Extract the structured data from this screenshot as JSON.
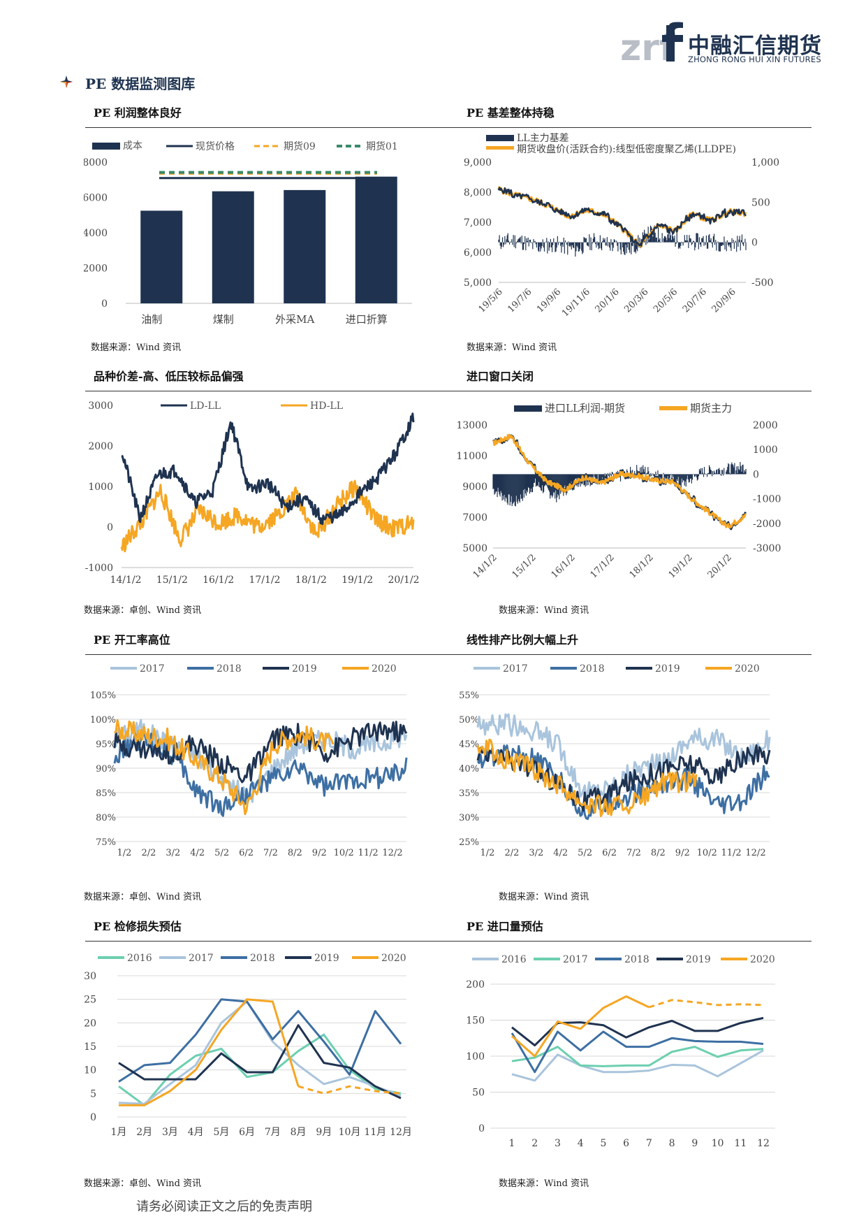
{
  "header": {
    "logo_mark": "zrf",
    "logo_cn": "中融汇信期货",
    "logo_en": "ZHONG RONG HUI XIN FUTURES",
    "brand_color": "#1f3350"
  },
  "section_title": "PE 数据监测图库",
  "panels": [
    {
      "title": "PE 利润整体良好",
      "source": "数据来源：Wind 资讯"
    },
    {
      "title": "PE 基差整体持稳",
      "source": "数据来源：Wind 资讯"
    },
    {
      "title": "品种价差-高、低压较标品偏强",
      "source": "数据来源：卓创、Wind 资讯"
    },
    {
      "title": "进口窗口关闭",
      "source": "数据来源：Wind 资讯"
    },
    {
      "title": "PE 开工率高位",
      "source": "数据来源：卓创、Wind 资讯"
    },
    {
      "title": "线性排产比例大幅上升",
      "source": "数据来源：Wind 资讯"
    },
    {
      "title": "PE 检修损失预估",
      "source": "数据来源：卓创、Wind 资讯"
    },
    {
      "title": "PE 进口量预估",
      "source": "数据来源：Wind 资讯"
    }
  ],
  "footer": "请务必阅读正文之后的免责声明",
  "colors": {
    "navy": "#1f3350",
    "orange": "#f5a623",
    "green": "#3a8a6a",
    "lightblue": "#a9c4dc",
    "midblue": "#3d6fa3",
    "teal": "#6ccfb0"
  },
  "chart_data": [
    {
      "type": "bar",
      "categories": [
        "油制",
        "煤制",
        "外采MA",
        "进口折算"
      ],
      "series": [
        {
          "name": "成本",
          "values": [
            5250,
            6350,
            6420,
            7180
          ]
        },
        {
          "name": "现货价格",
          "values": [
            7100,
            7100,
            7100,
            7100
          ]
        },
        {
          "name": "期货09",
          "values": [
            7350,
            7350,
            7350,
            7350
          ]
        },
        {
          "name": "期货01",
          "values": [
            7420,
            7420,
            7420,
            7420
          ]
        }
      ],
      "y_ticks": [
        "8000",
        "6000",
        "4000",
        "2000",
        "0"
      ],
      "ylim": [
        0,
        8000
      ]
    },
    {
      "type": "line",
      "series": [
        {
          "name": "LL主力基差"
        },
        {
          "name": "期货收盘价(活跃合约):线型低密度聚乙烯(LLDPE)"
        }
      ],
      "x_ticks": [
        "19/5/6",
        "19/7/6",
        "19/9/6",
        "19/11/6",
        "20/1/6",
        "20/3/6",
        "20/5/6",
        "20/7/6",
        "20/9/6"
      ],
      "y_left_ticks": [
        "9,000",
        "8,000",
        "7,000",
        "6,000",
        "5,000"
      ],
      "y_right_ticks": [
        "1,000",
        "500",
        "0",
        "-500"
      ],
      "ylim_left": [
        5000,
        9000
      ],
      "ylim_right": [
        -500,
        1000
      ]
    },
    {
      "type": "line",
      "series": [
        {
          "name": "LD-LL"
        },
        {
          "name": "HD-LL"
        }
      ],
      "x_ticks": [
        "14/1/2",
        "15/1/2",
        "16/1/2",
        "17/1/2",
        "18/1/2",
        "19/1/2",
        "20/1/2"
      ],
      "y_ticks": [
        "3000",
        "2000",
        "1000",
        "0",
        "-1000"
      ],
      "ylim": [
        -1000,
        3000
      ]
    },
    {
      "type": "line",
      "series": [
        {
          "name": "进口LL利润-期货"
        },
        {
          "name": "期货主力"
        }
      ],
      "x_ticks": [
        "14/1/2",
        "15/1/2",
        "16/1/2",
        "17/1/2",
        "18/1/2",
        "19/1/2",
        "20/1/2"
      ],
      "y_left_ticks": [
        "13000",
        "11000",
        "9000",
        "7000",
        "5000"
      ],
      "y_right_ticks": [
        "2000",
        "1000",
        "0",
        "-1000",
        "-2000",
        "-3000"
      ],
      "ylim_left": [
        5000,
        13000
      ],
      "ylim_right": [
        -3000,
        2000
      ]
    },
    {
      "type": "line",
      "series": [
        {
          "name": "2017"
        },
        {
          "name": "2018"
        },
        {
          "name": "2019"
        },
        {
          "name": "2020"
        }
      ],
      "x_ticks": [
        "1/2",
        "2/2",
        "3/2",
        "4/2",
        "5/2",
        "6/2",
        "7/2",
        "8/2",
        "9/2",
        "10/2",
        "11/2",
        "12/2"
      ],
      "y_ticks": [
        "105%",
        "100%",
        "95%",
        "90%",
        "85%",
        "80%",
        "75%"
      ],
      "ylim": [
        75,
        105
      ]
    },
    {
      "type": "line",
      "series": [
        {
          "name": "2017"
        },
        {
          "name": "2018"
        },
        {
          "name": "2019"
        },
        {
          "name": "2020"
        }
      ],
      "x_ticks": [
        "1/2",
        "2/2",
        "3/2",
        "4/2",
        "5/2",
        "6/2",
        "7/2",
        "8/2",
        "9/2",
        "10/2",
        "11/2",
        "12/2"
      ],
      "y_ticks": [
        "55%",
        "50%",
        "45%",
        "40%",
        "35%",
        "30%",
        "25%"
      ],
      "ylim": [
        25,
        55
      ]
    },
    {
      "type": "line",
      "categories": [
        "1月",
        "2月",
        "3月",
        "4月",
        "5月",
        "6月",
        "7月",
        "8月",
        "9月",
        "10月",
        "11月",
        "12月"
      ],
      "series": [
        {
          "name": "2016",
          "values": [
            6.5,
            2.5,
            9,
            13,
            14.5,
            8.5,
            9.5,
            14,
            17.5,
            10,
            6,
            5
          ]
        },
        {
          "name": "2017",
          "values": [
            3,
            2.8,
            7,
            11,
            20,
            24.5,
            16,
            11,
            7,
            8.5,
            6.5,
            4.5
          ]
        },
        {
          "name": "2018",
          "values": [
            7.5,
            11,
            11.5,
            17.5,
            25,
            24.5,
            16.5,
            22.5,
            16,
            9,
            22.5,
            15.5
          ]
        },
        {
          "name": "2019",
          "values": [
            11.5,
            8,
            8,
            8,
            13.5,
            9.5,
            9.5,
            19.5,
            11.5,
            10.5,
            6.5,
            4
          ]
        },
        {
          "name": "2020",
          "values": [
            2.5,
            2.5,
            5.5,
            10,
            18.5,
            25,
            24.5,
            6.5,
            5,
            6.5,
            5.5,
            5
          ]
        }
      ],
      "y_ticks": [
        "30",
        "25",
        "20",
        "15",
        "10",
        "5",
        "0"
      ],
      "ylim": [
        0,
        30
      ]
    },
    {
      "type": "line",
      "categories": [
        "1",
        "2",
        "3",
        "4",
        "5",
        "6",
        "7",
        "8",
        "9",
        "10",
        "11",
        "12"
      ],
      "series": [
        {
          "name": "2016",
          "values": [
            75,
            66,
            102,
            87,
            78,
            78,
            80,
            88,
            87,
            72,
            90,
            108
          ]
        },
        {
          "name": "2017",
          "values": [
            93,
            98,
            113,
            87,
            86,
            87,
            87,
            106,
            113,
            99,
            108,
            110
          ]
        },
        {
          "name": "2018",
          "values": [
            132,
            78,
            134,
            108,
            134,
            113,
            113,
            125,
            121,
            120,
            120,
            117
          ]
        },
        {
          "name": "2019",
          "values": [
            140,
            115,
            146,
            147,
            143,
            126,
            140,
            149,
            135,
            135,
            146,
            153
          ]
        },
        {
          "name": "2020",
          "values": [
            128,
            100,
            148,
            138,
            167,
            183,
            168,
            178,
            175,
            171,
            172,
            171
          ]
        }
      ],
      "y_ticks": [
        "200",
        "150",
        "100",
        "50",
        "0"
      ],
      "ylim": [
        0,
        200
      ]
    }
  ]
}
